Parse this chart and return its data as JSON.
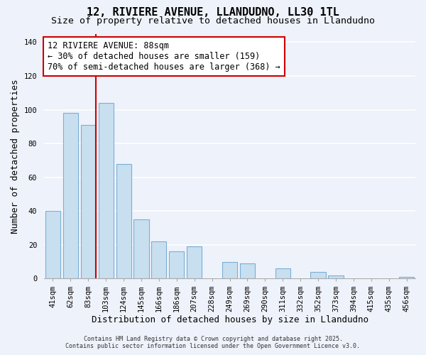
{
  "title": "12, RIVIERE AVENUE, LLANDUDNO, LL30 1TL",
  "subtitle": "Size of property relative to detached houses in Llandudno",
  "xlabel": "Distribution of detached houses by size in Llandudno",
  "ylabel": "Number of detached properties",
  "categories": [
    "41sqm",
    "62sqm",
    "83sqm",
    "103sqm",
    "124sqm",
    "145sqm",
    "166sqm",
    "186sqm",
    "207sqm",
    "228sqm",
    "249sqm",
    "269sqm",
    "290sqm",
    "311sqm",
    "332sqm",
    "352sqm",
    "373sqm",
    "394sqm",
    "415sqm",
    "435sqm",
    "456sqm"
  ],
  "values": [
    40,
    98,
    91,
    104,
    68,
    35,
    22,
    16,
    19,
    0,
    10,
    9,
    0,
    6,
    0,
    4,
    2,
    0,
    0,
    0,
    1
  ],
  "bar_color": "#c8dff0",
  "bar_edge_color": "#7aafd4",
  "vline_x_index": 2,
  "vline_color": "#cc0000",
  "ylim": [
    0,
    145
  ],
  "yticks": [
    0,
    20,
    40,
    60,
    80,
    100,
    120,
    140
  ],
  "annotation_text_line1": "12 RIVIERE AVENUE: 88sqm",
  "annotation_text_line2": "← 30% of detached houses are smaller (159)",
  "annotation_text_line3": "70% of semi-detached houses are larger (368) →",
  "footer_line1": "Contains HM Land Registry data © Crown copyright and database right 2025.",
  "footer_line2": "Contains public sector information licensed under the Open Government Licence v3.0.",
  "background_color": "#eef2fa",
  "plot_bg_color": "#eef2fa",
  "grid_color": "#ffffff",
  "title_fontsize": 11,
  "subtitle_fontsize": 9.5,
  "axis_label_fontsize": 9,
  "tick_fontsize": 7.5,
  "annotation_fontsize": 8.5,
  "footer_fontsize": 6
}
